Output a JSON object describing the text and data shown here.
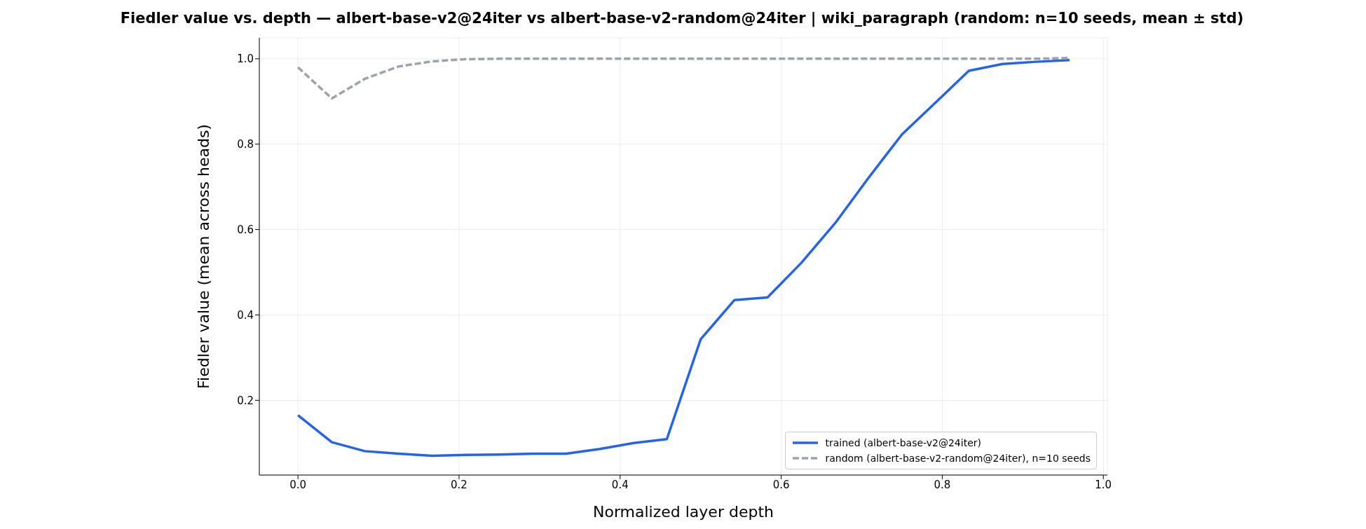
{
  "chart_data": {
    "type": "line",
    "title": "Fiedler value vs. depth — albert-base-v2@24iter vs albert-base-v2-random@24iter | wiki_paragraph  (random: n=10 seeds, mean ± std)",
    "xlabel": "Normalized layer depth",
    "ylabel": "Fiedler value (mean across heads)",
    "x": [
      0,
      0.042,
      0.083,
      0.125,
      0.167,
      0.208,
      0.25,
      0.292,
      0.333,
      0.375,
      0.417,
      0.458,
      0.5,
      0.542,
      0.583,
      0.625,
      0.667,
      0.708,
      0.75,
      0.792,
      0.833,
      0.875,
      0.917,
      0.958
    ],
    "series": [
      {
        "name": "trained (albert-base-v2@24iter)",
        "color": "#2563eb",
        "line_style": "solid",
        "values": [
          0.165,
          0.102,
          0.081,
          0.075,
          0.07,
          0.072,
          0.073,
          0.075,
          0.075,
          0.086,
          0.1,
          0.109,
          0.343,
          0.435,
          0.441,
          0.522,
          0.615,
          0.72,
          0.823,
          0.898,
          0.972,
          0.988,
          0.993,
          0.997
        ]
      },
      {
        "name": "random (albert-base-v2-random@24iter), n=10 seeds",
        "color": "#9ca3af",
        "line_style": "dashed",
        "values": [
          0.98,
          0.907,
          0.953,
          0.982,
          0.994,
          0.999,
          1.0,
          1.0,
          1.0,
          1.0,
          1.0,
          1.0,
          1.0,
          1.0,
          1.0,
          1.0,
          1.0,
          1.0,
          1.0,
          1.0,
          1.0,
          1.0,
          1.0,
          1.002
        ]
      }
    ],
    "xlim": [
      -0.048,
      1.005
    ],
    "ylim": [
      0.025,
      1.049
    ],
    "xticks": [
      {
        "value": 0,
        "label": "0.0"
      },
      0.2,
      0.4,
      0.6,
      0.8,
      {
        "value": 1,
        "label": "1.0"
      }
    ],
    "yticks": [
      0.2,
      0.4,
      0.6,
      0.8,
      {
        "value": 1,
        "label": "1.0"
      }
    ],
    "grid": true,
    "legend": "bottom right",
    "marker": "none"
  }
}
